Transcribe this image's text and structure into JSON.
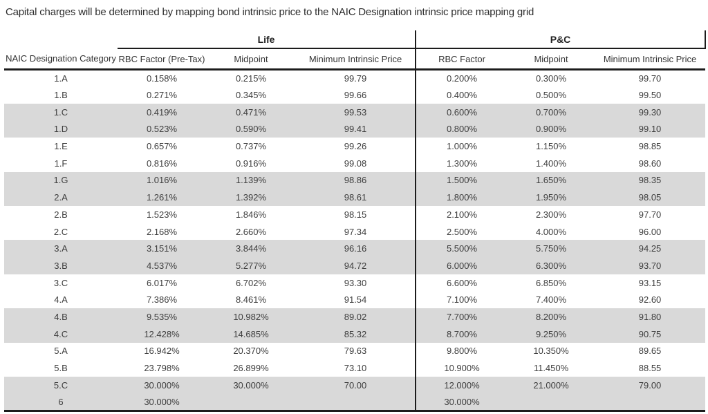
{
  "title": "Capital charges will be determined by mapping bond intrinsic price to the NAIC Designation intrinsic price mapping grid",
  "colors": {
    "row_shading": "#d9d9d9",
    "text": "#3d3d3d",
    "rule_lines": "#1c1c1c"
  },
  "table": {
    "group_headers": {
      "life": "Life",
      "pc": "P&C"
    },
    "columns": {
      "category": "NAIC Designation Category",
      "life": [
        "RBC Factor (Pre-Tax)",
        "Midpoint",
        "Minimum Intrinsic Price"
      ],
      "pc": [
        "RBC Factor",
        "Midpoint",
        "Minimum Intrinsic Price"
      ]
    },
    "rows": [
      {
        "category": "1.A",
        "life": [
          "0.158%",
          "0.215%",
          "99.79"
        ],
        "pc": [
          "0.200%",
          "0.300%",
          "99.70"
        ],
        "shaded": false
      },
      {
        "category": "1.B",
        "life": [
          "0.271%",
          "0.345%",
          "99.66"
        ],
        "pc": [
          "0.400%",
          "0.500%",
          "99.50"
        ],
        "shaded": false
      },
      {
        "category": "1.C",
        "life": [
          "0.419%",
          "0.471%",
          "99.53"
        ],
        "pc": [
          "0.600%",
          "0.700%",
          "99.30"
        ],
        "shaded": true
      },
      {
        "category": "1.D",
        "life": [
          "0.523%",
          "0.590%",
          "99.41"
        ],
        "pc": [
          "0.800%",
          "0.900%",
          "99.10"
        ],
        "shaded": true
      },
      {
        "category": "1.E",
        "life": [
          "0.657%",
          "0.737%",
          "99.26"
        ],
        "pc": [
          "1.000%",
          "1.150%",
          "98.85"
        ],
        "shaded": false
      },
      {
        "category": "1.F",
        "life": [
          "0.816%",
          "0.916%",
          "99.08"
        ],
        "pc": [
          "1.300%",
          "1.400%",
          "98.60"
        ],
        "shaded": false
      },
      {
        "category": "1.G",
        "life": [
          "1.016%",
          "1.139%",
          "98.86"
        ],
        "pc": [
          "1.500%",
          "1.650%",
          "98.35"
        ],
        "shaded": true
      },
      {
        "category": "2.A",
        "life": [
          "1.261%",
          "1.392%",
          "98.61"
        ],
        "pc": [
          "1.800%",
          "1.950%",
          "98.05"
        ],
        "shaded": true
      },
      {
        "category": "2.B",
        "life": [
          "1.523%",
          "1.846%",
          "98.15"
        ],
        "pc": [
          "2.100%",
          "2.300%",
          "97.70"
        ],
        "shaded": false
      },
      {
        "category": "2.C",
        "life": [
          "2.168%",
          "2.660%",
          "97.34"
        ],
        "pc": [
          "2.500%",
          "4.000%",
          "96.00"
        ],
        "shaded": false
      },
      {
        "category": "3.A",
        "life": [
          "3.151%",
          "3.844%",
          "96.16"
        ],
        "pc": [
          "5.500%",
          "5.750%",
          "94.25"
        ],
        "shaded": true
      },
      {
        "category": "3.B",
        "life": [
          "4.537%",
          "5.277%",
          "94.72"
        ],
        "pc": [
          "6.000%",
          "6.300%",
          "93.70"
        ],
        "shaded": true
      },
      {
        "category": "3.C",
        "life": [
          "6.017%",
          "6.702%",
          "93.30"
        ],
        "pc": [
          "6.600%",
          "6.850%",
          "93.15"
        ],
        "shaded": false
      },
      {
        "category": "4.A",
        "life": [
          "7.386%",
          "8.461%",
          "91.54"
        ],
        "pc": [
          "7.100%",
          "7.400%",
          "92.60"
        ],
        "shaded": false
      },
      {
        "category": "4.B",
        "life": [
          "9.535%",
          "10.982%",
          "89.02"
        ],
        "pc": [
          "7.700%",
          "8.200%",
          "91.80"
        ],
        "shaded": true
      },
      {
        "category": "4.C",
        "life": [
          "12.428%",
          "14.685%",
          "85.32"
        ],
        "pc": [
          "8.700%",
          "9.250%",
          "90.75"
        ],
        "shaded": true
      },
      {
        "category": "5.A",
        "life": [
          "16.942%",
          "20.370%",
          "79.63"
        ],
        "pc": [
          "9.800%",
          "10.350%",
          "89.65"
        ],
        "shaded": false
      },
      {
        "category": "5.B",
        "life": [
          "23.798%",
          "26.899%",
          "73.10"
        ],
        "pc": [
          "10.900%",
          "11.450%",
          "88.55"
        ],
        "shaded": false
      },
      {
        "category": "5.C",
        "life": [
          "30.000%",
          "30.000%",
          "70.00"
        ],
        "pc": [
          "12.000%",
          "21.000%",
          "79.00"
        ],
        "shaded": true
      },
      {
        "category": "6",
        "life": [
          "30.000%",
          "",
          ""
        ],
        "pc": [
          "30.000%",
          "",
          ""
        ],
        "shaded": true
      }
    ]
  }
}
